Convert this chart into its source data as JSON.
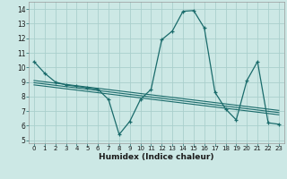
{
  "xlabel": "Humidex (Indice chaleur)",
  "bg_color": "#cce8e5",
  "grid_color": "#aacfcc",
  "line_color": "#1a6b6b",
  "xlim": [
    -0.5,
    23.5
  ],
  "ylim": [
    4.8,
    14.5
  ],
  "yticks": [
    5,
    6,
    7,
    8,
    9,
    10,
    11,
    12,
    13,
    14
  ],
  "xticks": [
    0,
    1,
    2,
    3,
    4,
    5,
    6,
    7,
    8,
    9,
    10,
    11,
    12,
    13,
    14,
    15,
    16,
    17,
    18,
    19,
    20,
    21,
    22,
    23
  ],
  "main_x": [
    0,
    1,
    2,
    3,
    4,
    5,
    6,
    7,
    8,
    9,
    10,
    11,
    12,
    13,
    14,
    15,
    16,
    17,
    18,
    19,
    20,
    21,
    22,
    23
  ],
  "main_y": [
    10.4,
    9.6,
    9.0,
    8.8,
    8.7,
    8.6,
    8.5,
    7.8,
    5.4,
    6.3,
    7.8,
    8.5,
    11.9,
    12.5,
    13.85,
    13.9,
    12.7,
    8.3,
    7.15,
    6.4,
    9.1,
    10.4,
    6.2,
    6.1
  ],
  "reg_lines": [
    [
      [
        0,
        23
      ],
      [
        9.1,
        7.05
      ]
    ],
    [
      [
        0,
        23
      ],
      [
        8.95,
        6.9
      ]
    ],
    [
      [
        0,
        23
      ],
      [
        8.8,
        6.75
      ]
    ]
  ]
}
